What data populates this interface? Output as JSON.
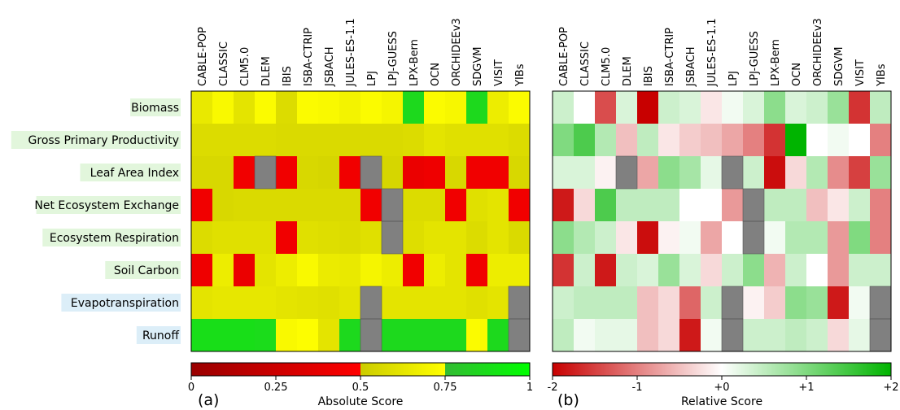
{
  "models": [
    "CABLE-POP",
    "CLASSIC",
    "CLM5.0",
    "DLEM",
    "IBIS",
    "ISBA-CTRIP",
    "JSBACH",
    "JULES-ES-1.1",
    "LPJ",
    "LPJ-GUESS",
    "LPX-Bern",
    "OCN",
    "ORCHIDEEv3",
    "SDGVM",
    "VISIT",
    "YIBs"
  ],
  "variables": [
    {
      "name": "Biomass",
      "highlight": "#e2f6dc"
    },
    {
      "name": "Gross Primary Productivity",
      "highlight": "#e2f6dc"
    },
    {
      "name": "Leaf Area Index",
      "highlight": "#e2f6dc"
    },
    {
      "name": "Net Ecosystem Exchange",
      "highlight": "#e2f6dc"
    },
    {
      "name": "Ecosystem Respiration",
      "highlight": "#e2f6dc"
    },
    {
      "name": "Soil Carbon",
      "highlight": "#e2f6dc"
    },
    {
      "name": "Evapotranspiration",
      "highlight": "#dceef8"
    },
    {
      "name": "Runoff",
      "highlight": "#dceef8"
    }
  ],
  "chart_data": [
    {
      "type": "heatmap",
      "panel_label": "(a)",
      "colorbar_label": "Absolute Score",
      "colorbar_ticks": [
        "0",
        "0.25",
        "0.5",
        "0.75",
        "1"
      ],
      "colorbar_range": [
        0,
        1
      ],
      "colorscale": [
        [
          0,
          "#990000"
        ],
        [
          0.5,
          "#ff0000"
        ],
        [
          0.5,
          "#cccc00"
        ],
        [
          0.75,
          "#ffff00"
        ],
        [
          0.75,
          "#33bb33"
        ],
        [
          1,
          "#00ff00"
        ]
      ],
      "missing_color": "#808080",
      "values": [
        [
          0.64,
          0.72,
          0.62,
          0.73,
          0.58,
          0.73,
          0.72,
          0.69,
          0.73,
          0.7,
          0.86,
          0.73,
          0.71,
          0.86,
          0.66,
          0.73
        ],
        [
          0.58,
          0.58,
          0.58,
          0.58,
          0.57,
          0.57,
          0.57,
          0.57,
          0.57,
          0.57,
          0.58,
          0.62,
          0.6,
          0.6,
          0.6,
          0.58
        ],
        [
          0.56,
          0.56,
          0.43,
          null,
          0.43,
          0.56,
          0.55,
          0.43,
          null,
          0.55,
          0.4,
          0.42,
          0.56,
          0.43,
          0.43,
          0.56
        ],
        [
          0.43,
          0.56,
          0.57,
          0.57,
          0.57,
          0.57,
          0.57,
          0.57,
          0.43,
          null,
          0.58,
          0.58,
          0.43,
          0.6,
          0.62,
          0.43
        ],
        [
          0.58,
          0.6,
          0.6,
          0.6,
          0.43,
          0.6,
          0.59,
          0.58,
          0.6,
          null,
          0.59,
          0.62,
          0.62,
          0.58,
          0.62,
          0.57
        ],
        [
          0.42,
          0.66,
          0.4,
          0.62,
          0.66,
          0.72,
          0.65,
          0.64,
          0.7,
          0.66,
          0.43,
          0.66,
          0.62,
          0.43,
          0.66,
          0.66
        ],
        [
          0.62,
          0.63,
          0.63,
          0.63,
          0.62,
          0.61,
          0.6,
          0.62,
          null,
          0.62,
          0.62,
          0.62,
          0.62,
          0.6,
          0.62,
          null
        ],
        [
          0.88,
          0.88,
          0.88,
          0.87,
          0.72,
          0.74,
          0.62,
          0.86,
          null,
          0.86,
          0.86,
          0.86,
          0.86,
          0.73,
          0.86,
          null
        ]
      ]
    },
    {
      "type": "heatmap",
      "panel_label": "(b)",
      "colorbar_label": "Relative Score",
      "colorbar_ticks": [
        "-2",
        "-1",
        "+0",
        "+1",
        "+2"
      ],
      "colorbar_range": [
        -2,
        2
      ],
      "colorscale": [
        [
          -2,
          "#c80000"
        ],
        [
          0,
          "#ffffff"
        ],
        [
          2,
          "#00b400"
        ]
      ],
      "missing_color": "#808080",
      "values": [
        [
          0.4,
          0.0,
          -1.4,
          0.3,
          -2.0,
          0.4,
          0.3,
          -0.2,
          0.1,
          0.3,
          0.9,
          0.3,
          0.4,
          0.8,
          -1.6,
          0.5
        ],
        [
          1.0,
          1.4,
          0.6,
          -0.5,
          0.5,
          -0.2,
          -0.4,
          -0.5,
          -0.7,
          -1.0,
          -1.6,
          2.0,
          0.0,
          0.1,
          0.0,
          -1.0
        ],
        [
          0.3,
          0.3,
          -0.1,
          null,
          -0.7,
          0.9,
          0.7,
          0.2,
          null,
          0.4,
          -1.9,
          -0.3,
          0.6,
          -0.9,
          -1.5,
          0.8
        ],
        [
          -1.8,
          -0.3,
          1.4,
          0.5,
          0.5,
          0.5,
          0.0,
          0.0,
          -0.8,
          null,
          0.5,
          0.5,
          -0.5,
          -0.2,
          0.4,
          -1.0
        ],
        [
          0.9,
          0.6,
          0.4,
          -0.2,
          -1.9,
          -0.1,
          0.1,
          -0.7,
          0.0,
          null,
          0.1,
          0.6,
          0.6,
          -0.8,
          1.0,
          -1.0
        ],
        [
          -1.6,
          0.4,
          -1.8,
          0.4,
          0.3,
          0.8,
          0.3,
          -0.3,
          0.4,
          0.9,
          -0.6,
          0.4,
          0.0,
          -0.8,
          0.4,
          0.4
        ],
        [
          0.4,
          0.5,
          0.5,
          0.5,
          -0.5,
          -0.3,
          -1.2,
          0.4,
          null,
          -0.1,
          -0.4,
          0.9,
          0.8,
          -1.8,
          0.1,
          null
        ],
        [
          0.5,
          0.1,
          0.2,
          0.2,
          -0.5,
          -0.3,
          -1.8,
          0.1,
          null,
          0.4,
          0.4,
          0.5,
          0.4,
          -0.3,
          0.2,
          null
        ]
      ]
    }
  ]
}
